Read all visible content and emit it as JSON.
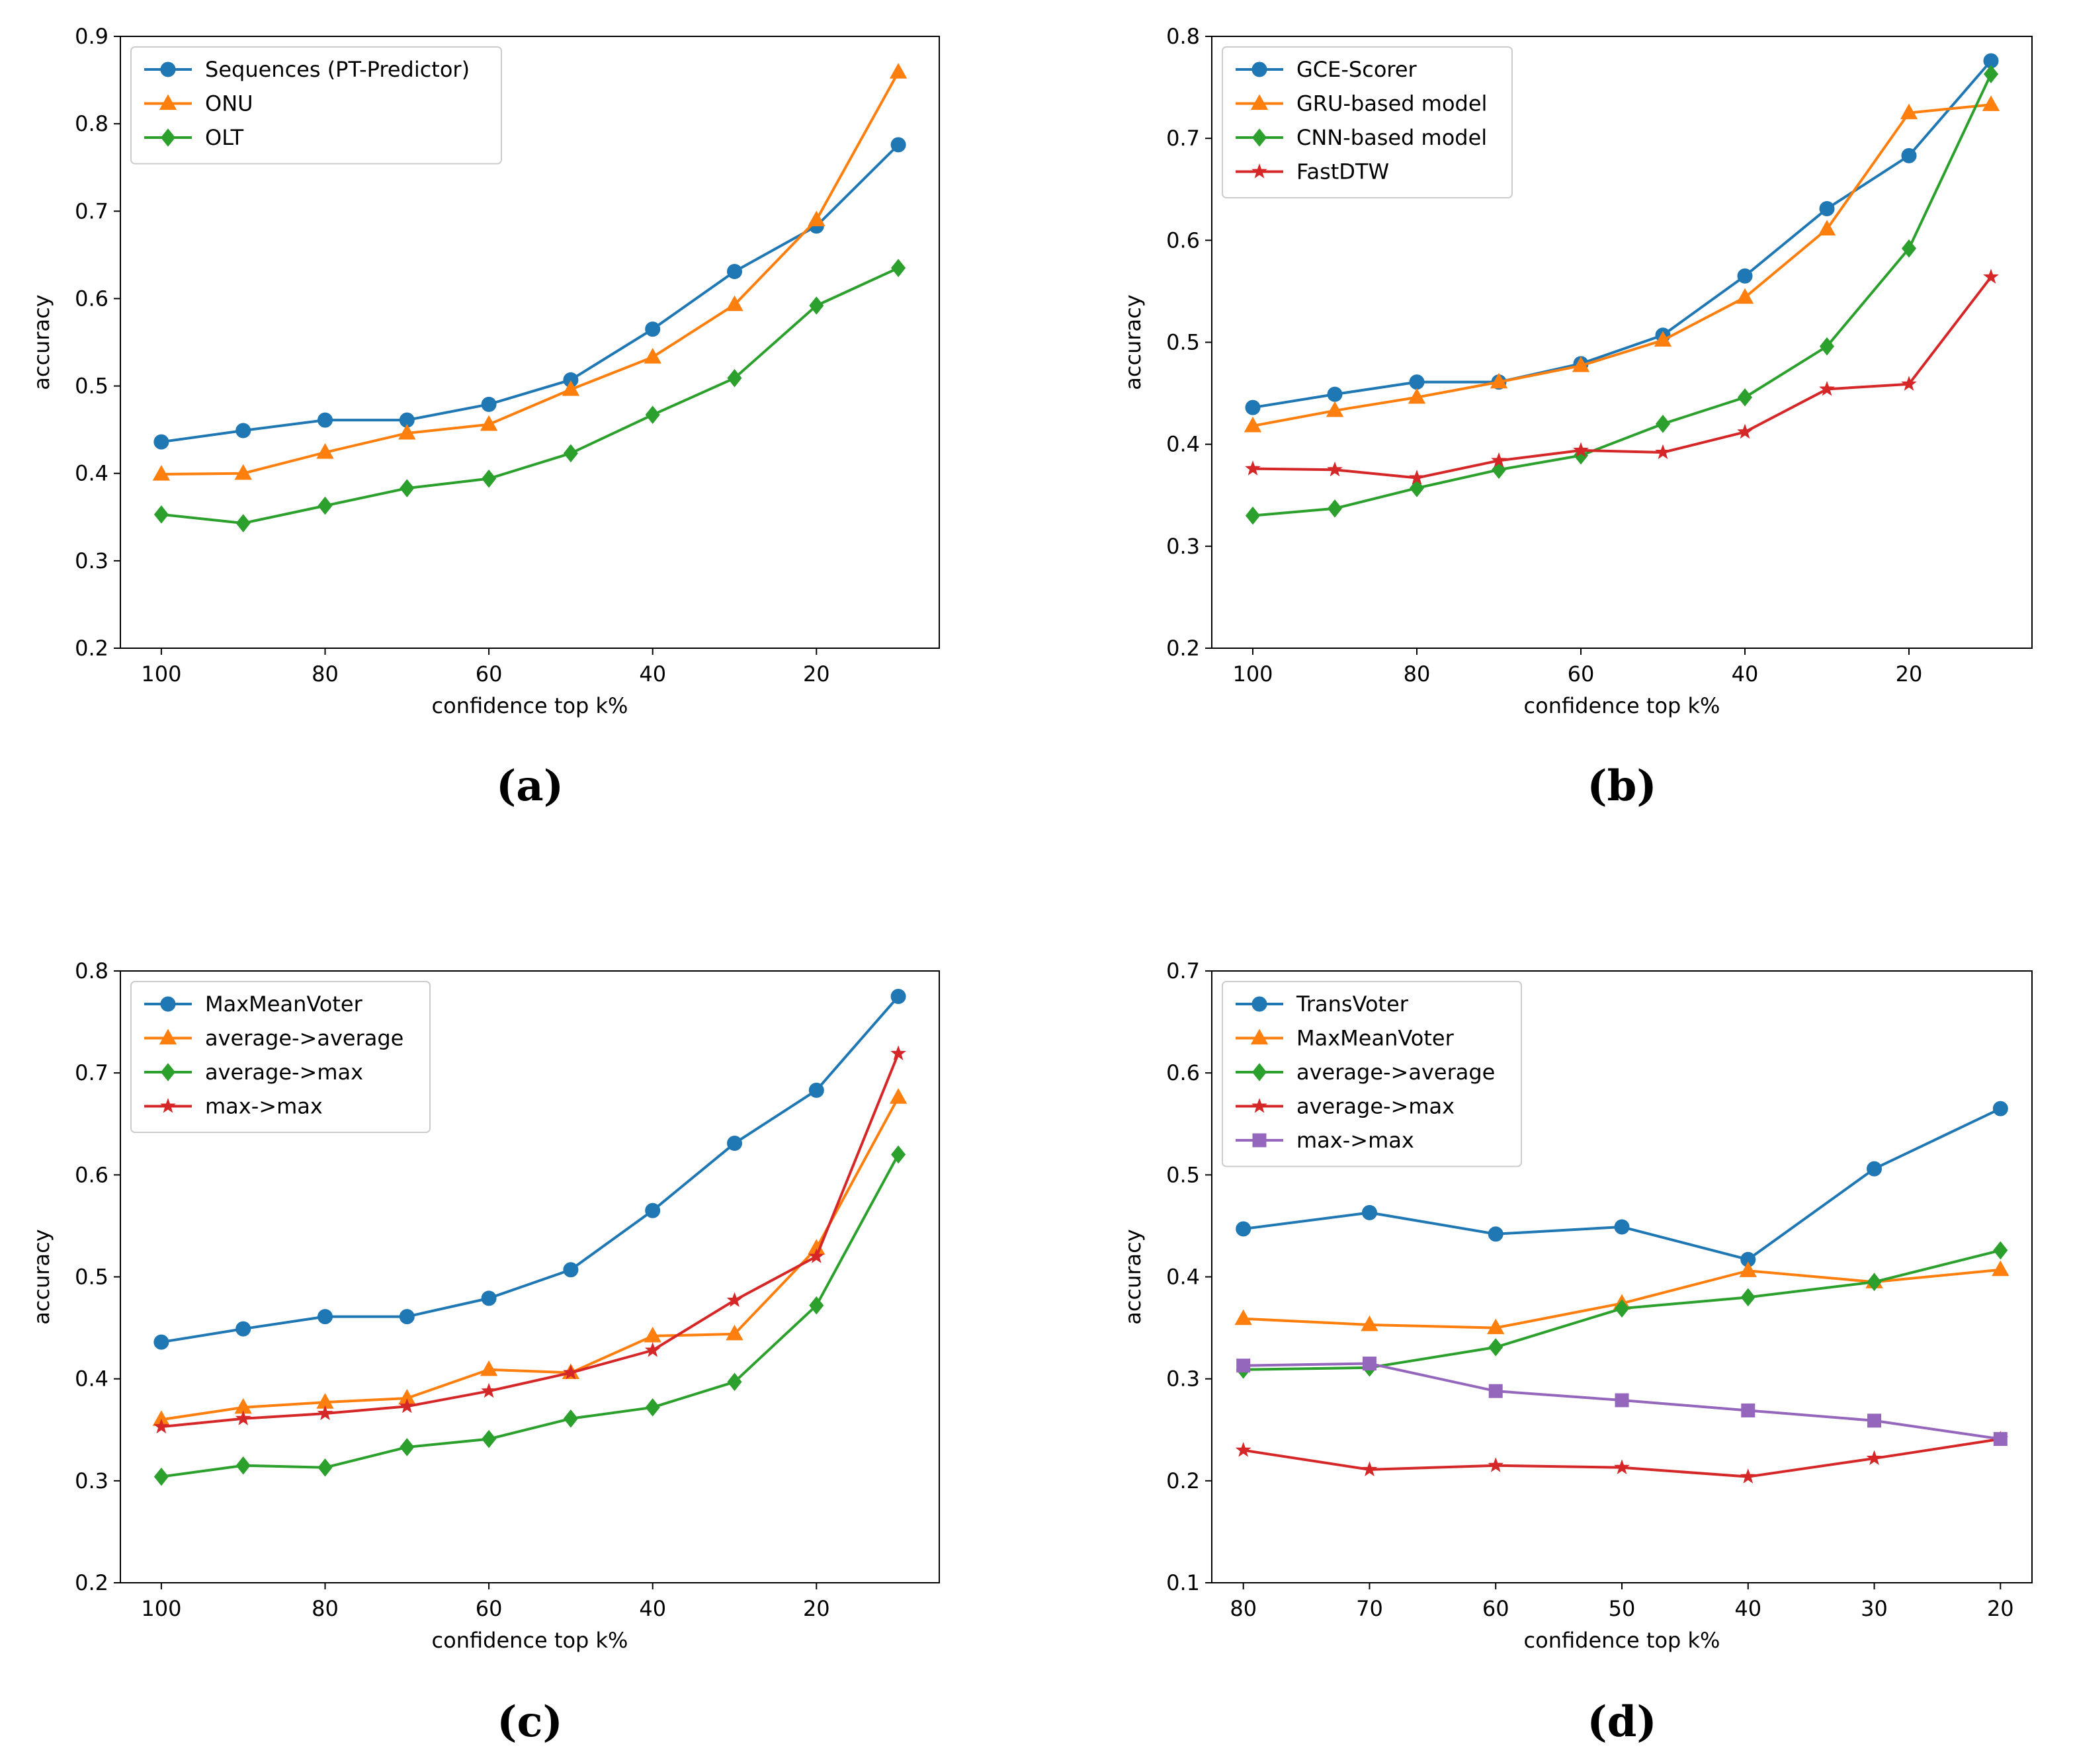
{
  "chart_data": [
    {
      "id": "a",
      "type": "line",
      "panel_label": "(a)",
      "xlabel": "confidence top k%",
      "ylabel": "accuracy",
      "x": [
        100,
        90,
        80,
        70,
        60,
        50,
        40,
        30,
        20,
        10
      ],
      "xlim": [
        105,
        5
      ],
      "xticks": [
        100,
        80,
        60,
        40,
        20
      ],
      "ylim": [
        0.2,
        0.9
      ],
      "yticks": [
        0.2,
        0.3,
        0.4,
        0.5,
        0.6,
        0.7,
        0.8,
        0.9
      ],
      "legend_position": "top-left",
      "series": [
        {
          "name": "Sequences (PT-Predictor)",
          "color": "#1f77b4",
          "marker": "circle",
          "values": [
            0.436,
            0.449,
            0.461,
            0.461,
            0.479,
            0.507,
            0.565,
            0.631,
            0.683,
            0.776
          ]
        },
        {
          "name": "ONU",
          "color": "#ff7f0e",
          "marker": "triangle",
          "values": [
            0.399,
            0.4,
            0.424,
            0.446,
            0.456,
            0.496,
            0.533,
            0.593,
            0.69,
            0.859
          ]
        },
        {
          "name": "OLT",
          "color": "#2ca02c",
          "marker": "diamond",
          "values": [
            0.353,
            0.343,
            0.363,
            0.383,
            0.394,
            0.423,
            0.467,
            0.509,
            0.592,
            0.635
          ]
        }
      ]
    },
    {
      "id": "b",
      "type": "line",
      "panel_label": "(b)",
      "xlabel": "confidence top k%",
      "ylabel": "accuracy",
      "x": [
        100,
        90,
        80,
        70,
        60,
        50,
        40,
        30,
        20,
        10
      ],
      "xlim": [
        105,
        5
      ],
      "xticks": [
        100,
        80,
        60,
        40,
        20
      ],
      "ylim": [
        0.2,
        0.8
      ],
      "yticks": [
        0.2,
        0.3,
        0.4,
        0.5,
        0.6,
        0.7,
        0.8
      ],
      "legend_position": "top-left",
      "series": [
        {
          "name": "GCE-Scorer",
          "color": "#1f77b4",
          "marker": "circle",
          "values": [
            0.436,
            0.449,
            0.461,
            0.461,
            0.479,
            0.507,
            0.565,
            0.631,
            0.683,
            0.776
          ]
        },
        {
          "name": "GRU-based model",
          "color": "#ff7f0e",
          "marker": "triangle",
          "values": [
            0.418,
            0.433,
            0.446,
            0.461,
            0.477,
            0.502,
            0.544,
            0.611,
            0.725,
            0.733
          ]
        },
        {
          "name": "CNN-based model",
          "color": "#2ca02c",
          "marker": "diamond",
          "values": [
            0.33,
            0.337,
            0.357,
            0.375,
            0.389,
            0.42,
            0.446,
            0.496,
            0.592,
            0.763
          ]
        },
        {
          "name": "FastDTW",
          "color": "#d62728",
          "marker": "star",
          "values": [
            0.376,
            0.375,
            0.367,
            0.384,
            0.394,
            0.392,
            0.412,
            0.454,
            0.459,
            0.564
          ]
        }
      ]
    },
    {
      "id": "c",
      "type": "line",
      "panel_label": "(c)",
      "xlabel": "confidence top k%",
      "ylabel": "accuracy",
      "x": [
        100,
        90,
        80,
        70,
        60,
        50,
        40,
        30,
        20,
        10
      ],
      "xlim": [
        105,
        5
      ],
      "xticks": [
        100,
        80,
        60,
        40,
        20
      ],
      "ylim": [
        0.2,
        0.8
      ],
      "yticks": [
        0.2,
        0.3,
        0.4,
        0.5,
        0.6,
        0.7,
        0.8
      ],
      "legend_position": "top-left",
      "series": [
        {
          "name": "MaxMeanVoter",
          "color": "#1f77b4",
          "marker": "circle",
          "values": [
            0.436,
            0.449,
            0.461,
            0.461,
            0.479,
            0.507,
            0.565,
            0.631,
            0.683,
            0.775
          ]
        },
        {
          "name": "average->average",
          "color": "#ff7f0e",
          "marker": "triangle",
          "values": [
            0.36,
            0.372,
            0.377,
            0.381,
            0.409,
            0.406,
            0.442,
            0.444,
            0.528,
            0.676
          ]
        },
        {
          "name": "average->max",
          "color": "#2ca02c",
          "marker": "diamond",
          "values": [
            0.304,
            0.315,
            0.313,
            0.333,
            0.341,
            0.361,
            0.372,
            0.397,
            0.472,
            0.62
          ]
        },
        {
          "name": "max->max",
          "color": "#d62728",
          "marker": "star",
          "values": [
            0.353,
            0.361,
            0.366,
            0.373,
            0.388,
            0.406,
            0.428,
            0.477,
            0.52,
            0.719
          ]
        }
      ]
    },
    {
      "id": "d",
      "type": "line",
      "panel_label": "(d)",
      "xlabel": "confidence top k%",
      "ylabel": "accuracy",
      "x": [
        80,
        70,
        60,
        50,
        40,
        30,
        20
      ],
      "xlim": [
        82.5,
        17.5
      ],
      "xticks": [
        80,
        70,
        60,
        50,
        40,
        30,
        20
      ],
      "ylim": [
        0.1,
        0.7
      ],
      "yticks": [
        0.1,
        0.2,
        0.3,
        0.4,
        0.5,
        0.6,
        0.7
      ],
      "legend_position": "top-left",
      "series": [
        {
          "name": "TransVoter",
          "color": "#1f77b4",
          "marker": "circle",
          "values": [
            0.447,
            0.463,
            0.442,
            0.449,
            0.417,
            0.506,
            0.565
          ]
        },
        {
          "name": "MaxMeanVoter",
          "color": "#ff7f0e",
          "marker": "triangle",
          "values": [
            0.359,
            0.353,
            0.35,
            0.374,
            0.406,
            0.395,
            0.407
          ]
        },
        {
          "name": "average->average",
          "color": "#2ca02c",
          "marker": "diamond",
          "values": [
            0.309,
            0.311,
            0.331,
            0.369,
            0.38,
            0.395,
            0.426
          ]
        },
        {
          "name": "average->max",
          "color": "#d62728",
          "marker": "star",
          "values": [
            0.23,
            0.211,
            0.215,
            0.213,
            0.204,
            0.222,
            0.241
          ]
        },
        {
          "name": "max->max",
          "color": "#9467bd",
          "marker": "square",
          "values": [
            0.313,
            0.315,
            0.288,
            0.279,
            0.269,
            0.259,
            0.241
          ]
        }
      ]
    }
  ]
}
